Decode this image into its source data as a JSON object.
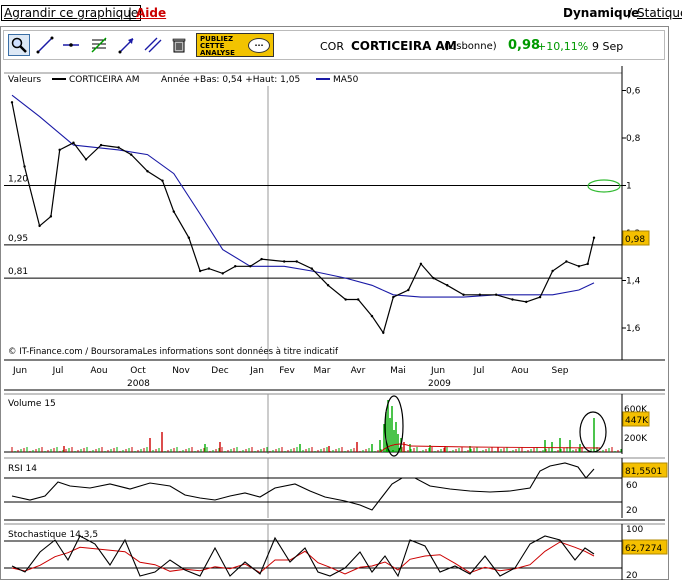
{
  "topbar": {
    "enlarge_label": "Agrandir ce graphique",
    "separator": "|",
    "help_label": "Aide",
    "dynamic_label": "Dynamique",
    "slash": "/",
    "static_label": "Statique"
  },
  "toolbar": {
    "tools": [
      "zoom-icon",
      "line-icon",
      "horizontal-line-icon",
      "fibonacci-icon",
      "trend-arrow-icon",
      "channel-icon",
      "trash-icon"
    ],
    "publish_line1": "PUBLIEZ",
    "publish_line2": "CETTE",
    "publish_line3": "ANALYSE",
    "publish_bubble": "..."
  },
  "quote": {
    "code": "COR",
    "name": "CORTICEIRA AM",
    "place": "(Lisbonne)",
    "price": "0,98",
    "change": "+10,11%",
    "date": "9 Sep"
  },
  "colors": {
    "price": "#000000",
    "ma50": "#1a1aa6",
    "rsi_signal": "#cc0000",
    "volume_up": "#00aa00",
    "volume_down": "#cc0000",
    "highlight": "#33bb33",
    "value_tag": "#f5c000"
  },
  "main_panel": {
    "legend_values": "Valeurs",
    "legend_series": "CORTICEIRA AM",
    "legend_range": "Année +Bas: 0,54 +Haut: 1,05",
    "legend_ma": "MA50",
    "y_ticks": [
      "1,6",
      "1,4",
      "1,2",
      "1",
      "0,8",
      "0,6"
    ],
    "hlines": [
      "1,20",
      "0,95",
      "0,81"
    ],
    "last_value_tag": "0,98",
    "footer": "© IT-Finance.com / BoursoramaLes informations sont données à titre indicatif",
    "months": [
      "Jun",
      "Jul",
      "Aou",
      "Oct",
      "Nov",
      "Dec",
      "Jan",
      "Fev",
      "Mar",
      "Avr",
      "Mai",
      "Jun",
      "Jul",
      "Aou",
      "Sep"
    ],
    "years": [
      "2008",
      "2009"
    ]
  },
  "volume_panel": {
    "title": "Volume 15",
    "y_ticks": [
      "600K",
      "200K"
    ],
    "value_tag": "447K"
  },
  "rsi_panel": {
    "title": "RSI 14",
    "y_ticks": [
      "60",
      "20"
    ],
    "value_tag": "81,5501"
  },
  "stoch_panel": {
    "title": "Stochastique 14,3,5",
    "y_ticks": [
      "100",
      "60",
      "20"
    ],
    "value_tag": "62,7274"
  },
  "chart_data": {
    "type": "line",
    "series": [
      {
        "name": "CORTICEIRA AM",
        "x": [
          "2008-06-02",
          "2008-06-12",
          "2008-06-24",
          "2008-07-03",
          "2008-07-10",
          "2008-07-21",
          "2008-07-31",
          "2008-08-12",
          "2008-08-26",
          "2008-09-05",
          "2008-09-18",
          "2008-09-30",
          "2008-10-09",
          "2008-10-21",
          "2008-10-30",
          "2008-11-06",
          "2008-11-17",
          "2008-11-27",
          "2008-12-09",
          "2008-12-18",
          "2009-01-05",
          "2009-01-15",
          "2009-01-27",
          "2009-02-09",
          "2009-02-23",
          "2009-03-05",
          "2009-03-16",
          "2009-03-25",
          "2009-04-02",
          "2009-04-14",
          "2009-04-24",
          "2009-05-04",
          "2009-05-15",
          "2009-05-28",
          "2009-06-10",
          "2009-06-23",
          "2009-07-06",
          "2009-07-17",
          "2009-07-28",
          "2009-08-07",
          "2009-08-18",
          "2009-08-28",
          "2009-09-04",
          "2009-09-09"
        ],
        "values": [
          1.55,
          1.28,
          1.03,
          1.07,
          1.35,
          1.38,
          1.31,
          1.37,
          1.36,
          1.33,
          1.26,
          1.22,
          1.09,
          0.98,
          0.84,
          0.85,
          0.83,
          0.86,
          0.86,
          0.89,
          0.88,
          0.88,
          0.85,
          0.78,
          0.72,
          0.72,
          0.65,
          0.58,
          0.73,
          0.76,
          0.87,
          0.81,
          0.78,
          0.74,
          0.74,
          0.74,
          0.72,
          0.71,
          0.73,
          0.84,
          0.88,
          0.86,
          0.87,
          0.98
        ]
      },
      {
        "name": "MA50",
        "x": [
          "2008-06-02",
          "2008-06-24",
          "2008-07-21",
          "2008-08-26",
          "2008-09-18",
          "2008-10-09",
          "2008-10-30",
          "2008-11-17",
          "2008-12-09",
          "2009-01-05",
          "2009-01-27",
          "2009-02-23",
          "2009-03-16",
          "2009-04-02",
          "2009-04-24",
          "2009-05-28",
          "2009-06-23",
          "2009-07-17",
          "2009-08-07",
          "2009-08-28",
          "2009-09-09"
        ],
        "values": [
          1.58,
          1.49,
          1.37,
          1.35,
          1.33,
          1.25,
          1.08,
          0.93,
          0.86,
          0.86,
          0.84,
          0.81,
          0.78,
          0.74,
          0.73,
          0.73,
          0.74,
          0.74,
          0.74,
          0.76,
          0.79
        ]
      }
    ],
    "hlines": [
      1.2,
      0.95,
      0.81
    ],
    "ylim": [
      0.5,
      1.65
    ],
    "y_ticks": [
      0.6,
      0.8,
      1.0,
      1.2,
      1.4,
      1.6
    ],
    "legend_position": "top-left",
    "grid": false
  }
}
